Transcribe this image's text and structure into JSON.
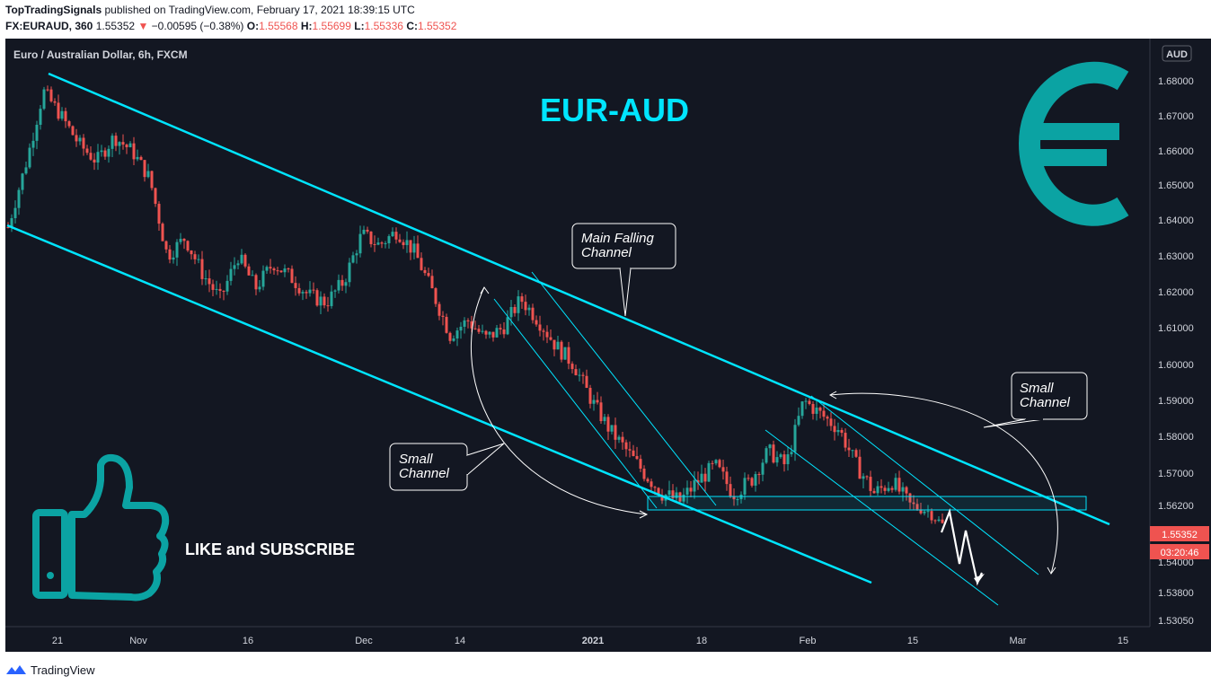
{
  "header": {
    "publisher": "TopTradingSignals",
    "published_text": "published on TradingView.com, February 17, 2021 18:39:15 UTC",
    "symbol": "FX:EURAUD, 360",
    "last": "1.55352",
    "change_arrow": "▼",
    "change": "−0.00595 (−0.38%)",
    "o_label": "O:",
    "o_value": "1.55568",
    "h_label": "H:",
    "h_value": "1.55699",
    "l_label": "L:",
    "l_value": "1.55336",
    "c_label": "C:",
    "c_value": "1.55352"
  },
  "chart_title": "Euro / Australian Dollar, 6h, FXCM",
  "currency_badge": "AUD",
  "big_label": "EUR-AUD",
  "like_subscribe": "LIKE and SUBSCRIBE",
  "annotations": {
    "main_channel": [
      "Main Falling",
      "Channel"
    ],
    "small_channel_left": [
      "Small",
      "Channel"
    ],
    "small_channel_right": [
      "Small",
      "Channel"
    ]
  },
  "price_tag": "1.55352",
  "countdown_tag": "03:20:46",
  "footer_brand": "TradingView",
  "colors": {
    "background": "#131722",
    "bull": "#26a69a",
    "bear": "#ef5350",
    "channel": "#00e5ff",
    "logo_teal": "#0ba3a3",
    "title_cyan": "#00e5ff"
  },
  "icons": [
    "euro-symbol-icon",
    "thumbs-up-icon",
    "tradingview-logo-icon"
  ],
  "chart_data": {
    "type": "candlestick",
    "title": "Euro / Australian Dollar, 6h, FXCM",
    "ylim": [
      1.5305,
      1.6905
    ],
    "y_ticks": [
      "1.68000",
      "1.67000",
      "1.66000",
      "1.65000",
      "1.64000",
      "1.63000",
      "1.62000",
      "1.61000",
      "1.60000",
      "1.59000",
      "1.58000",
      "1.57000",
      "1.56200",
      "1.54000",
      "1.53800",
      "1.53050"
    ],
    "x_ticks": [
      "21",
      "Nov",
      "16",
      "Dec",
      "14",
      "2021",
      "18",
      "Feb",
      "15",
      "Mar",
      "15"
    ],
    "close_path": [
      [
        "Oct 16",
        1.638
      ],
      [
        "Oct 19",
        1.656
      ],
      [
        "Oct 21",
        1.677
      ],
      [
        "Oct 23",
        1.67
      ],
      [
        "Oct 26",
        1.662
      ],
      [
        "Oct 28",
        1.657
      ],
      [
        "Oct 30",
        1.664
      ],
      [
        "Nov 2",
        1.66
      ],
      [
        "Nov 4",
        1.652
      ],
      [
        "Nov 6",
        1.63
      ],
      [
        "Nov 9",
        1.635
      ],
      [
        "Nov 11",
        1.625
      ],
      [
        "Nov 13",
        1.618
      ],
      [
        "Nov 16",
        1.63
      ],
      [
        "Nov 18",
        1.621
      ],
      [
        "Nov 20",
        1.628
      ],
      [
        "Nov 23",
        1.624
      ],
      [
        "Nov 25",
        1.619
      ],
      [
        "Nov 27",
        1.617
      ],
      [
        "Nov 30",
        1.623
      ],
      [
        "Dec 2",
        1.636
      ],
      [
        "Dec 4",
        1.633
      ],
      [
        "Dec 7",
        1.637
      ],
      [
        "Dec 9",
        1.631
      ],
      [
        "Dec 11",
        1.62
      ],
      [
        "Dec 14",
        1.608
      ],
      [
        "Dec 16",
        1.612
      ],
      [
        "Dec 18",
        1.607
      ],
      [
        "Dec 21",
        1.61
      ],
      [
        "Dec 23",
        1.618
      ],
      [
        "Dec 25",
        1.612
      ],
      [
        "Dec 28",
        1.605
      ],
      [
        "Dec 30",
        1.6
      ],
      [
        "Jan 1",
        1.59
      ],
      [
        "Jan 4",
        1.582
      ],
      [
        "Jan 6",
        1.576
      ],
      [
        "Jan 8",
        1.57
      ],
      [
        "Jan 11",
        1.565
      ],
      [
        "Jan 13",
        1.563
      ],
      [
        "Jan 15",
        1.568
      ],
      [
        "Jan 18",
        1.572
      ],
      [
        "Jan 20",
        1.565
      ],
      [
        "Jan 22",
        1.568
      ],
      [
        "Jan 25",
        1.576
      ],
      [
        "Jan 27",
        1.572
      ],
      [
        "Jan 29",
        1.59
      ],
      [
        "Feb 1",
        1.586
      ],
      [
        "Feb 3",
        1.582
      ],
      [
        "Feb 5",
        1.572
      ],
      [
        "Feb 8",
        1.565
      ],
      [
        "Feb 10",
        1.568
      ],
      [
        "Feb 12",
        1.562
      ],
      [
        "Feb 15",
        1.56
      ],
      [
        "Feb 17",
        1.55352
      ]
    ],
    "last_price": 1.55352,
    "support_zone": [
      1.5585,
      1.5625
    ],
    "projection": "zig-zag down toward ~1.540"
  }
}
